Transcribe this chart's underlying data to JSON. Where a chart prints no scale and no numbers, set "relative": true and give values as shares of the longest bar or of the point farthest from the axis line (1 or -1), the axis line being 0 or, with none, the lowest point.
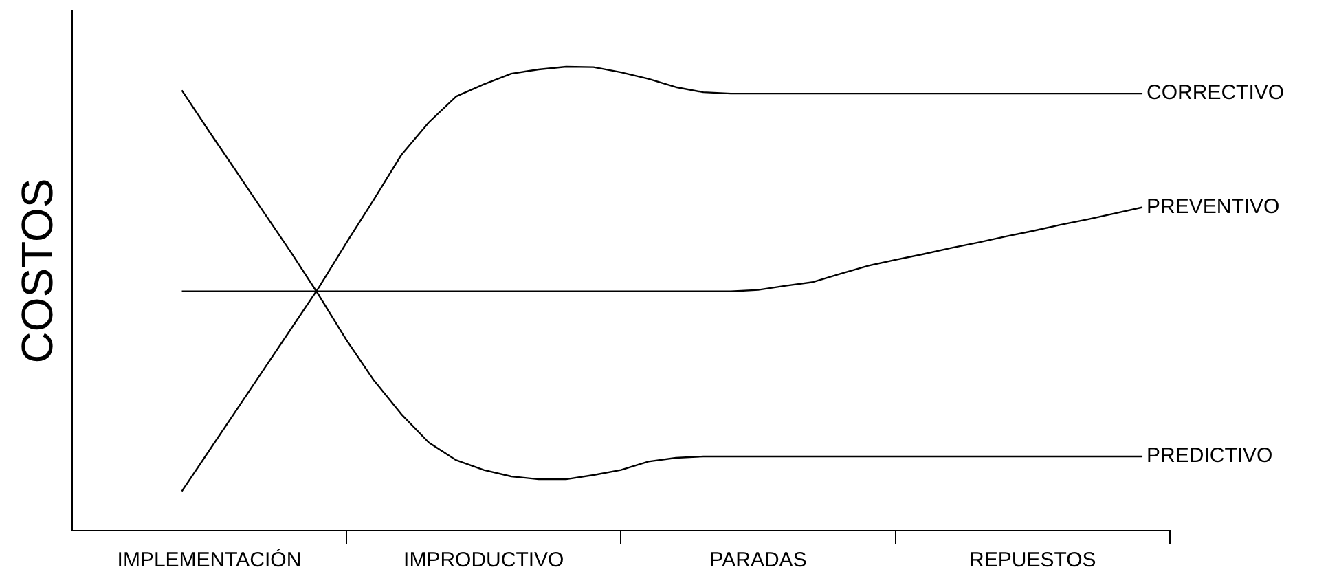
{
  "chart_data": {
    "type": "line",
    "relative": true,
    "ylabel": "COSTOS",
    "categories": [
      null,
      null,
      null,
      null,
      null,
      "IMPLEMENTACIÓN",
      null,
      null,
      null,
      null,
      null,
      null,
      null,
      null,
      null,
      "IMPRODUCTIVO",
      null,
      null,
      null,
      null,
      null,
      null,
      null,
      null,
      null,
      "PARADAS",
      null,
      null,
      null,
      null,
      null,
      null,
      null,
      null,
      null,
      "REPUESTOS",
      null,
      null,
      null,
      null,
      null
    ],
    "series": [
      {
        "name": "CORRECTIVO",
        "color": "#000000",
        "values": [
          null,
          null,
          null,
          null,
          0.085,
          0.173,
          0.261,
          0.349,
          0.437,
          0.525,
          0.621,
          0.714,
          0.81,
          0.88,
          0.936,
          0.962,
          0.985,
          0.994,
          1.0,
          0.999,
          0.988,
          0.974,
          0.956,
          0.945,
          0.942,
          0.942,
          0.942,
          0.942,
          0.942,
          0.942,
          0.942,
          0.942,
          0.942,
          0.942,
          0.942,
          0.942,
          0.942,
          0.942,
          0.942,
          0.942,
          null
        ]
      },
      {
        "name": "PREVENTIVO",
        "color": "#000000",
        "values": [
          null,
          null,
          null,
          null,
          0.516,
          0.516,
          0.516,
          0.516,
          0.516,
          0.516,
          0.516,
          0.516,
          0.516,
          0.516,
          0.516,
          0.516,
          0.516,
          0.516,
          0.516,
          0.516,
          0.516,
          0.516,
          0.516,
          0.516,
          0.516,
          0.519,
          0.528,
          0.536,
          0.554,
          0.571,
          0.584,
          0.596,
          0.609,
          0.621,
          0.634,
          0.646,
          0.659,
          0.671,
          0.684,
          0.697,
          null
        ]
      },
      {
        "name": "PREDICTIVO",
        "color": "#000000",
        "values": [
          null,
          null,
          null,
          null,
          0.949,
          0.86,
          0.773,
          0.685,
          0.598,
          0.507,
          0.411,
          0.324,
          0.251,
          0.19,
          0.152,
          0.131,
          0.117,
          0.111,
          0.111,
          0.12,
          0.131,
          0.149,
          0.157,
          0.16,
          0.16,
          0.16,
          0.16,
          0.16,
          0.16,
          0.16,
          0.16,
          0.16,
          0.16,
          0.16,
          0.16,
          0.16,
          0.16,
          0.16,
          0.16,
          0.16,
          null
        ]
      }
    ],
    "legend": false,
    "grid": false,
    "marker": "none",
    "line_style": "solid"
  }
}
